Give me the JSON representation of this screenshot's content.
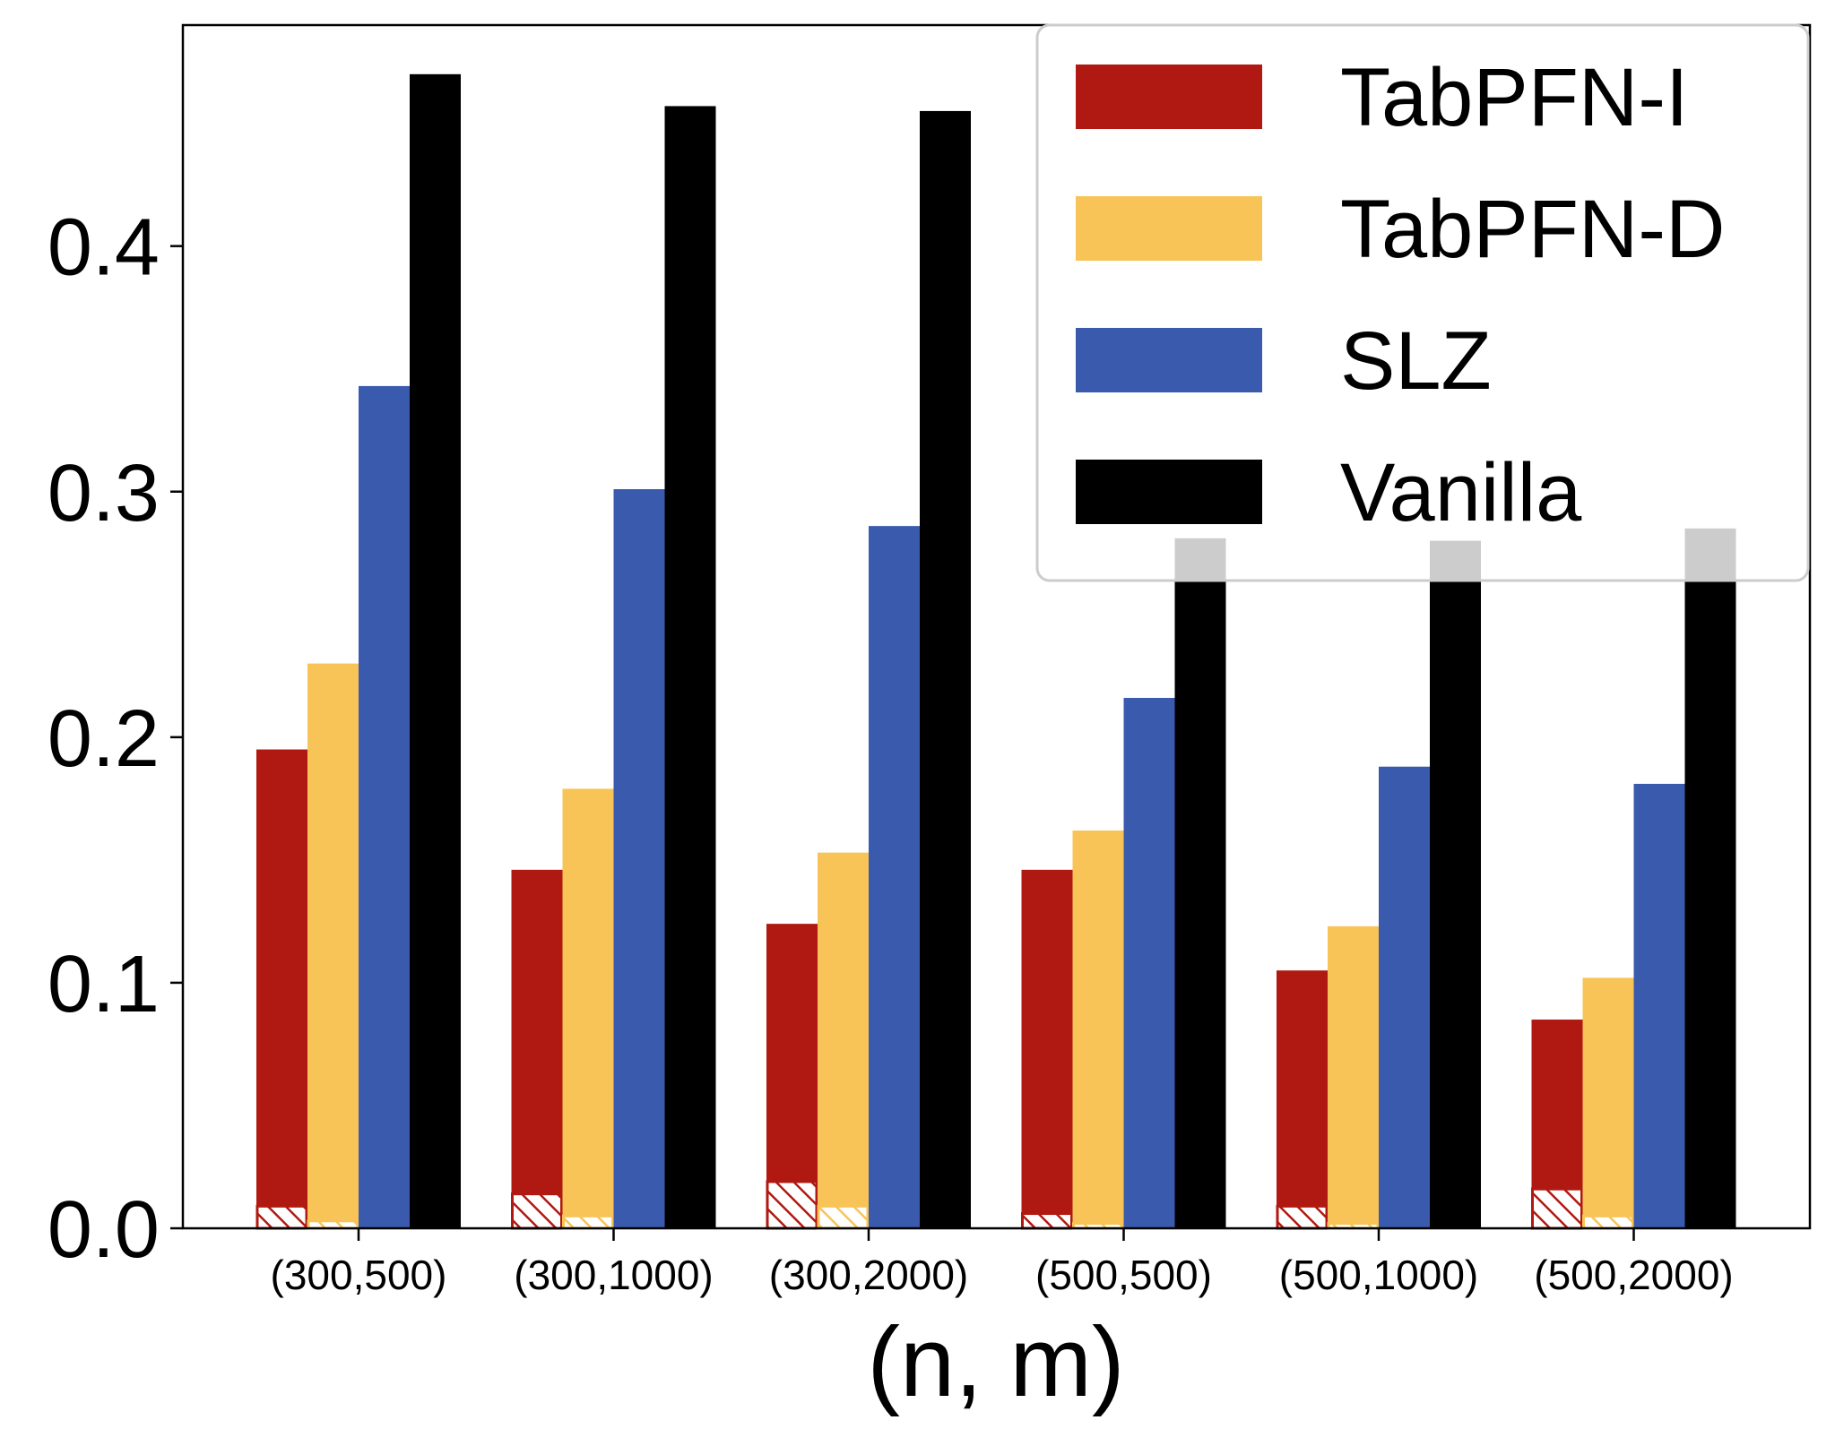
{
  "chart_data": {
    "type": "bar",
    "categories": [
      "(300,500)",
      "(300,1000)",
      "(300,2000)",
      "(500,500)",
      "(500,1000)",
      "(500,2000)"
    ],
    "series": [
      {
        "name": "TabPFN-I",
        "color": "#b01911",
        "values": [
          0.195,
          0.146,
          0.124,
          0.146,
          0.105,
          0.085
        ],
        "hatched_base": [
          0.009,
          0.014,
          0.019,
          0.006,
          0.009,
          0.016
        ]
      },
      {
        "name": "TabPFN-D",
        "color": "#f8c457",
        "values": [
          0.23,
          0.179,
          0.153,
          0.162,
          0.123,
          0.102
        ],
        "hatched_base": [
          0.003,
          0.005,
          0.009,
          0.002,
          0.002,
          0.005
        ]
      },
      {
        "name": "SLZ",
        "color": "#3a5aad",
        "values": [
          0.343,
          0.301,
          0.286,
          0.216,
          0.188,
          0.181
        ]
      },
      {
        "name": "Vanilla",
        "color": "#000000",
        "values": [
          0.47,
          0.457,
          0.455,
          0.281,
          0.28,
          0.285
        ]
      }
    ],
    "title": "",
    "xlabel": "(n, m)",
    "ylabel": "",
    "ylim": [
      0,
      0.49
    ],
    "yticks": [
      "0.0",
      "0.1",
      "0.2",
      "0.3",
      "0.4"
    ],
    "grid": false,
    "legend": "top-right"
  }
}
